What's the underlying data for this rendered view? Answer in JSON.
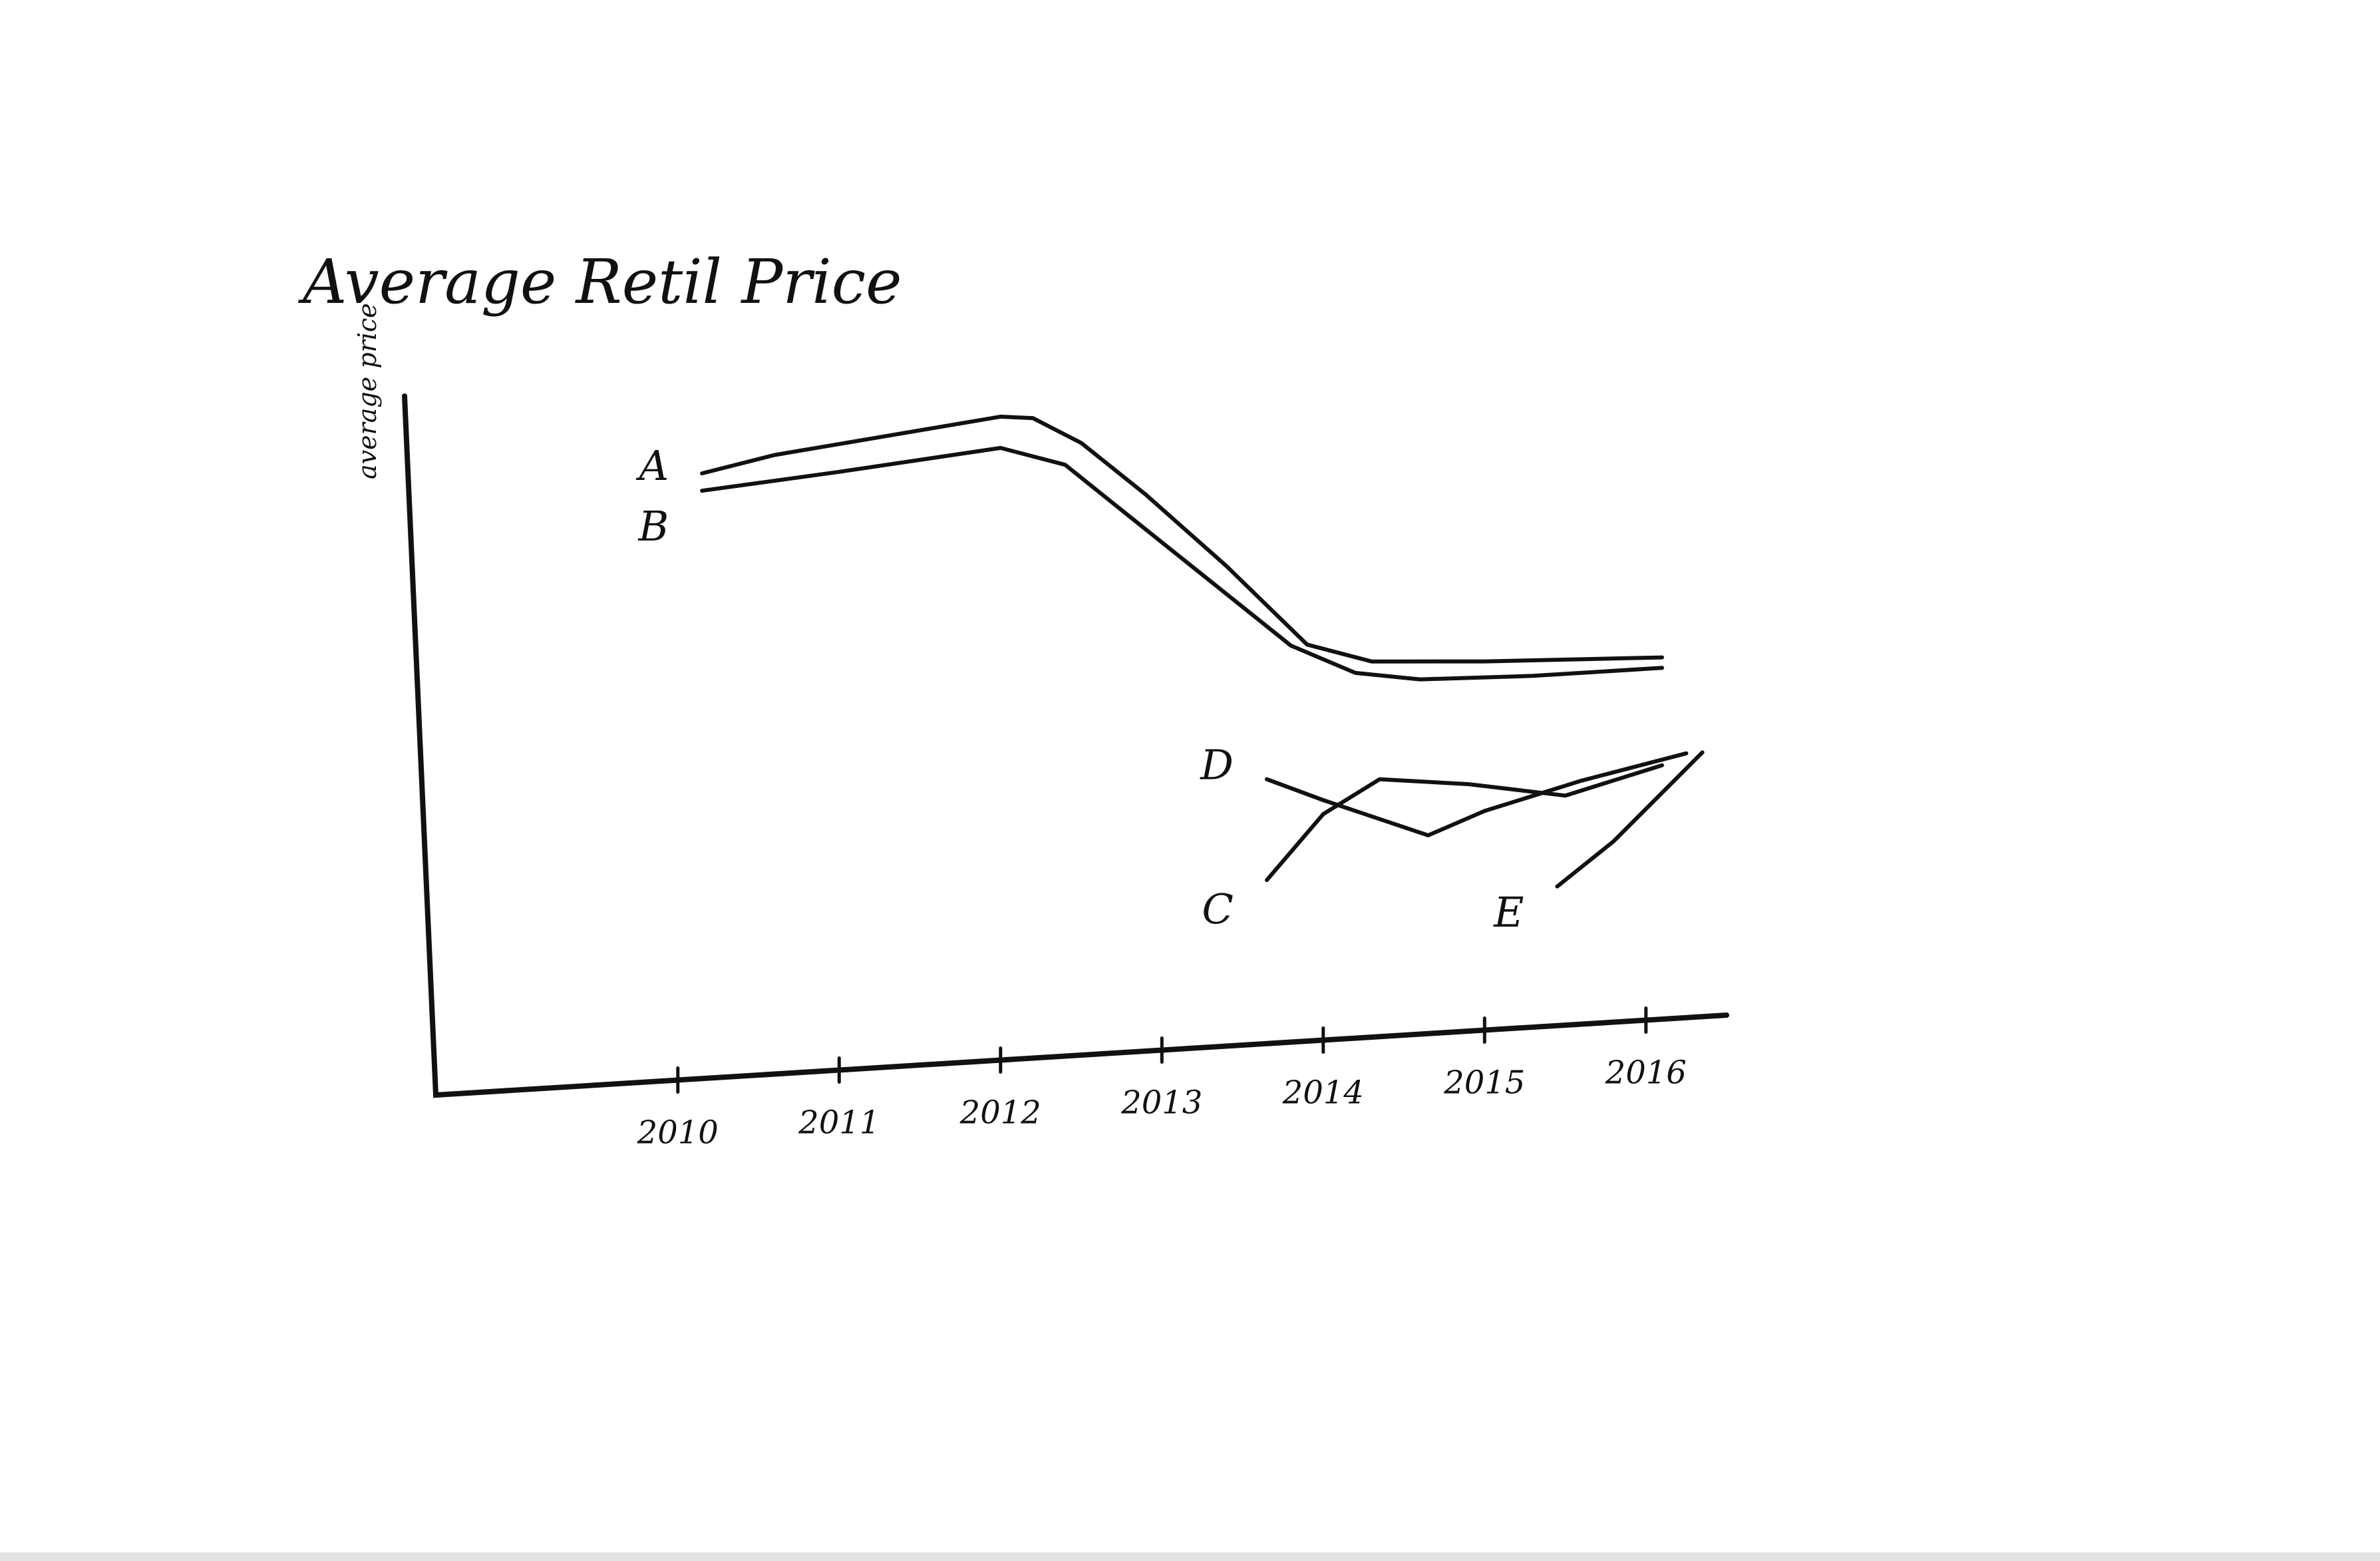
{
  "chart_data": {
    "type": "line",
    "title": "Average Retil Price",
    "xlabel": "",
    "ylabel": "average price",
    "categories": [
      "2010",
      "2011",
      "2012",
      "2013",
      "2014",
      "2015",
      "2016"
    ],
    "tick_labels": [
      "2010",
      "2011",
      "2012",
      "2013",
      "2014",
      "2015",
      "2016"
    ],
    "x_range": [
      2008.5,
      2016.5
    ],
    "ylim": [
      0,
      100
    ],
    "grid": false,
    "legend": "none",
    "series": [
      {
        "name": "A",
        "x": [
          2010.15,
          2010.6,
          2011.2,
          2012.0,
          2012.2,
          2012.5,
          2012.9,
          2013.4,
          2013.9,
          2014.3,
          2015.0,
          2016.1
        ],
        "y": [
          87,
          89,
          90.5,
          92.5,
          92,
          88,
          80,
          69,
          57,
          54,
          53,
          52
        ]
      },
      {
        "name": "B",
        "x": [
          2010.15,
          2011.0,
          2012.0,
          2012.4,
          2012.8,
          2013.3,
          2013.8,
          2014.2,
          2014.6,
          2015.3,
          2016.1
        ],
        "y": [
          84.5,
          86,
          88,
          85,
          77,
          67,
          57,
          52.5,
          51,
          50.5,
          50.5
        ]
      },
      {
        "name": "C",
        "x": [
          2013.65,
          2014.0,
          2014.35,
          2014.9,
          2015.5,
          2016.1
        ],
        "y": [
          23.5,
          32.5,
          37,
          35.5,
          33,
          36.5
        ]
      },
      {
        "name": "D",
        "x": [
          2013.65,
          2014.0,
          2014.65,
          2015.0,
          2015.6,
          2016.25
        ],
        "y": [
          38,
          34.5,
          28.5,
          31.5,
          35,
          38
        ]
      },
      {
        "name": "E",
        "x": [
          2015.45,
          2015.8,
          2016.35
        ],
        "y": [
          20,
          26,
          38
        ]
      }
    ]
  }
}
